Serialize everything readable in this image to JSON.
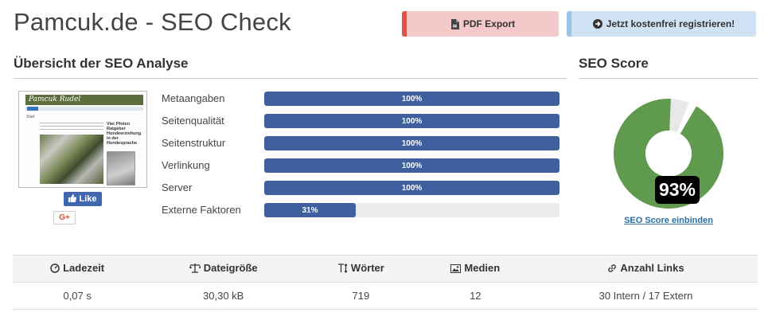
{
  "header": {
    "title": "Pamcuk.de - SEO Check",
    "pdf_export_label": "PDF Export",
    "register_label": "Jetzt kostenfrei registrieren!"
  },
  "overview": {
    "title": "Übersicht der SEO Analyse",
    "thumbnail": {
      "logo": "Pamcuk Rudel",
      "start": "Start",
      "side_text": "Vier Pfoten Ratgeber Hundeerziehung in der Hundesprache"
    },
    "social": {
      "like_label": "Like",
      "gplus_label": "G+"
    },
    "metrics": [
      {
        "label": "Metaangaben",
        "value": "100%",
        "fraction": 1.0
      },
      {
        "label": "Seitenqualität",
        "value": "100%",
        "fraction": 1.0
      },
      {
        "label": "Seitenstruktur",
        "value": "100%",
        "fraction": 1.0
      },
      {
        "label": "Verlinkung",
        "value": "100%",
        "fraction": 1.0
      },
      {
        "label": "Server",
        "value": "100%",
        "fraction": 1.0
      },
      {
        "label": "Externe Faktoren",
        "value": "31%",
        "fraction": 0.31
      }
    ]
  },
  "score": {
    "title": "SEO Score",
    "value": "93%",
    "fraction": 0.93,
    "link_label": "SEO Score einbinden",
    "color_filled": "#5f9a4e",
    "color_empty": "#e8e8e8"
  },
  "stats": {
    "headers": [
      "Ladezeit",
      "Dateigröße",
      "Wörter",
      "Medien",
      "Anzahl Links"
    ],
    "icons": [
      "gauge-icon",
      "scale-icon",
      "text-height-icon",
      "image-icon",
      "link-icon"
    ],
    "values": [
      "0,07 s",
      "30,30 kB",
      "719",
      "12",
      "30 Intern / 17 Extern"
    ]
  },
  "colors": {
    "bar": "#3f5f9f",
    "pdf_accent": "#d9534f",
    "register_accent": "#9dc3e6"
  }
}
